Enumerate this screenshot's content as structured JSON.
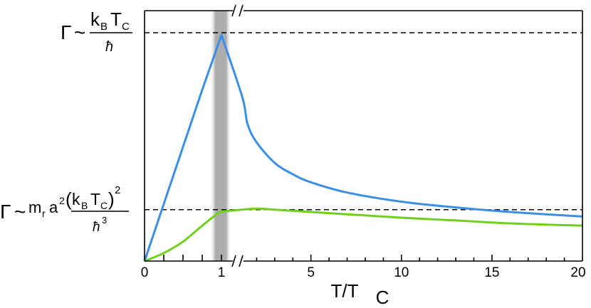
{
  "chart_data": {
    "type": "line",
    "xlabel": "T/T",
    "xlabel_sub": "C",
    "x_axis": "broken: linear 0-1, then 1-20",
    "x_ticks": [
      "0",
      "1",
      "5",
      "10",
      "15",
      "20"
    ],
    "x_ticks_minor_left": [
      0.25,
      0.5,
      0.75
    ],
    "highlight_band": {
      "center": 1.0,
      "half_width": 0.1,
      "color": "#9e9e9e"
    },
    "ref_lines": [
      {
        "name": "upper",
        "level": "k_B T_C / ħ",
        "y": 1.0
      },
      {
        "name": "lower",
        "level": "m_r a² (k_B T_C)² / ħ³",
        "y": 0.225
      }
    ],
    "y_labels": {
      "upper": {
        "gamma": "Γ",
        "tilde": "~",
        "num_k": "k",
        "num_k_sub": "B",
        "num_T": "T",
        "num_T_sub": "C",
        "den": "ħ"
      },
      "lower": {
        "gamma": "Γ",
        "tilde": "~",
        "m": "m",
        "m_sub": "r",
        "a": "a",
        "a_sup": "2",
        "paren_open": "(",
        "k": "k",
        "k_sub": "B",
        "T": "T",
        "T_sub": "C",
        "paren_close": ")",
        "sq": "2",
        "den": "ħ",
        "den_sup": "3"
      }
    },
    "series": [
      {
        "color": "#3b8ee8",
        "x": [
          0,
          0.25,
          0.5,
          0.75,
          1.0,
          1.2,
          1.5,
          2,
          3,
          4,
          5,
          7,
          10,
          13,
          16,
          20
        ],
        "y": [
          0,
          0.25,
          0.5,
          0.75,
          0.99,
          0.72,
          0.6,
          0.52,
          0.43,
          0.38,
          0.345,
          0.3,
          0.26,
          0.235,
          0.215,
          0.195
        ]
      },
      {
        "color": "#6fd11e",
        "x": [
          0,
          0.25,
          0.5,
          0.75,
          0.9,
          1.0,
          1.2,
          2,
          3,
          5,
          7,
          10,
          13,
          16,
          20
        ],
        "y": [
          0,
          0.035,
          0.085,
          0.155,
          0.195,
          0.215,
          0.225,
          0.23,
          0.225,
          0.215,
          0.205,
          0.19,
          0.178,
          0.165,
          0.155
        ]
      }
    ]
  },
  "colors": {
    "axis": "#000000",
    "refline": "#000000"
  }
}
